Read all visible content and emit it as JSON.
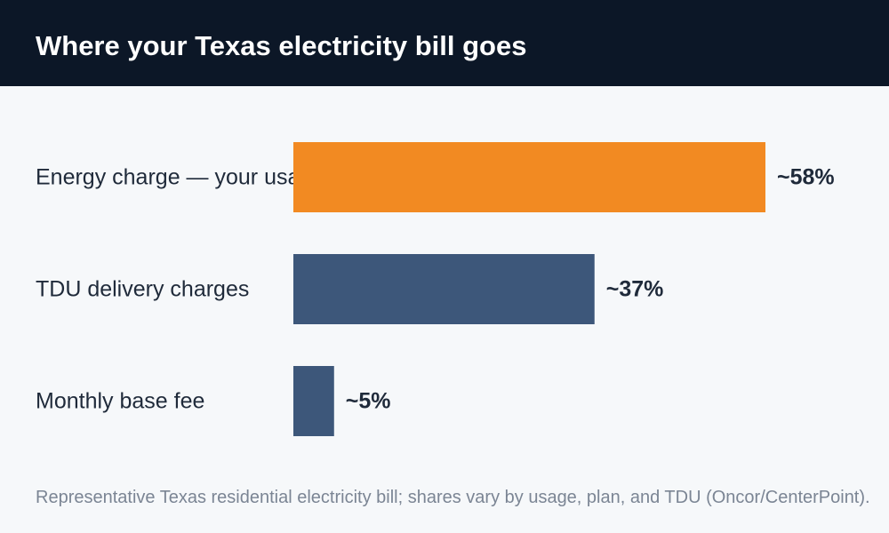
{
  "header": {
    "title": "Where your Texas electricity bill goes"
  },
  "chart_data": {
    "type": "bar",
    "orientation": "horizontal",
    "title": "Where your Texas electricity bill goes",
    "categories": [
      "Energy charge — your usage",
      "TDU delivery charges",
      "Monthly base fee"
    ],
    "values": [
      58,
      37,
      5
    ],
    "value_labels": [
      "~58%",
      "~37%",
      "~5%"
    ],
    "colors": [
      "#f28a22",
      "#3d577a",
      "#3d577a"
    ],
    "xlim": [
      0,
      100
    ],
    "grid": false,
    "legend": "none"
  },
  "footnote": "Representative Texas residential electricity bill; shares vary by usage, plan, and TDU (Oncor/CenterPoint)."
}
